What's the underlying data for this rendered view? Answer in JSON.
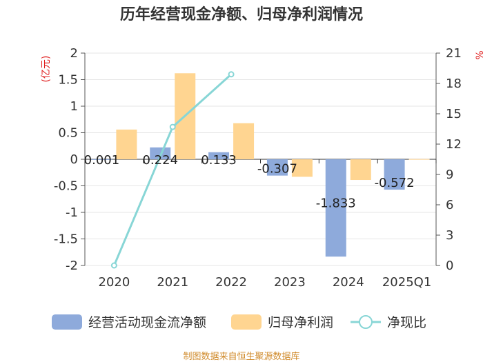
{
  "chart_data": {
    "type": "bar",
    "title": "历年经营现金净额、归母净利润情况",
    "categories": [
      "2020",
      "2021",
      "2022",
      "2023",
      "2024",
      "2025Q1"
    ],
    "y_left": {
      "unit_label": "(亿元)",
      "ylim": [
        -2,
        2
      ],
      "ticks": [
        "2",
        "1.5",
        "1",
        "0.5",
        "0",
        "-0.5",
        "-1",
        "-1.5",
        "-2"
      ]
    },
    "y_right": {
      "unit_label": "%",
      "ylim": [
        0,
        21
      ],
      "ticks": [
        "21",
        "18",
        "15",
        "12",
        "9",
        "6",
        "3",
        "0"
      ]
    },
    "series": [
      {
        "name": "经营活动现金流净额",
        "kind": "bar",
        "axis": "left",
        "color": "#8eaadb",
        "values": [
          0.001,
          0.224,
          0.133,
          -0.307,
          -1.833,
          -0.572
        ],
        "labels": [
          "0.001",
          "0.224",
          "0.133",
          "-0.307",
          "-1.833",
          "-0.572"
        ]
      },
      {
        "name": "归母净利润",
        "kind": "bar",
        "axis": "left",
        "color": "#ffd591",
        "values": [
          0.56,
          1.62,
          0.68,
          -0.33,
          -0.39,
          0.005
        ]
      },
      {
        "name": "净现比",
        "kind": "line",
        "axis": "right",
        "color": "#88d6d6",
        "values": [
          0.0,
          13.7,
          18.9,
          null,
          null,
          null
        ]
      }
    ],
    "legend_position": "bottom",
    "grid": true
  },
  "source": "制图数据来自恒生聚源数据库"
}
